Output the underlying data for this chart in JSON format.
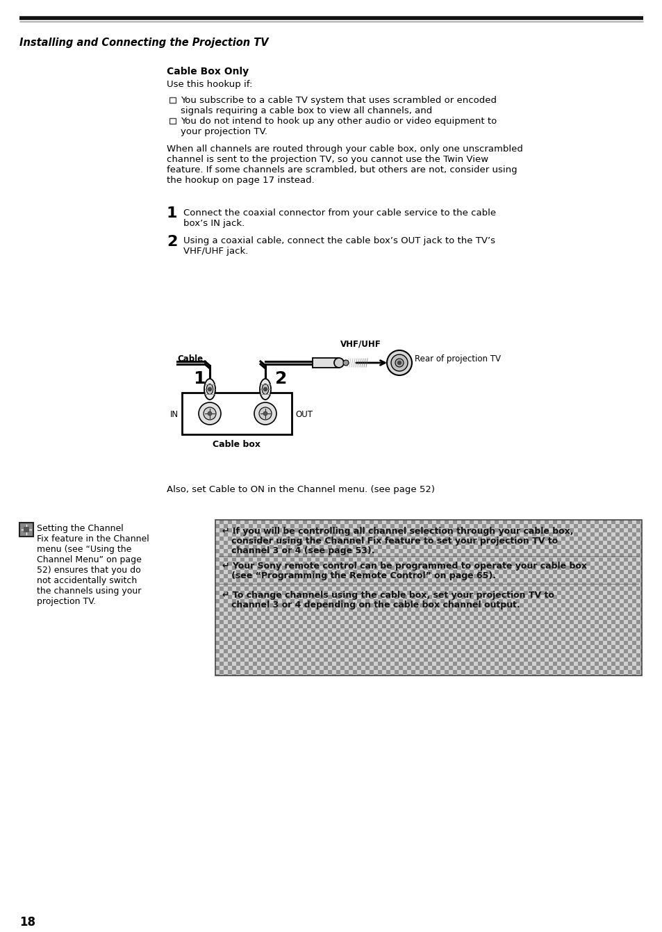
{
  "page_title": "Installing and Connecting the Projection TV",
  "section_title": "Cable Box Only",
  "subtitle": "Use this hookup if:",
  "bullet1": "You subscribe to a cable TV system that uses scrambled or encoded\nsignals requiring a cable box to view all channels, and",
  "bullet2": "You do not intend to hook up any other audio or video equipment to\nyour projection TV.",
  "body_text": "When all channels are routed through your cable box, only one unscrambled\nchannel is sent to the projection TV, so you cannot use the Twin View\nfeature. If some channels are scrambled, but others are not, consider using\nthe hookup on page 17 instead.",
  "step1": "Connect the coaxial connector from your cable service to the cable\nbox’s IN jack.",
  "step2": "Using a coaxial cable, connect the cable box’s OUT jack to the TV’s\nVHF/UHF jack.",
  "cable_label": "Cable",
  "vhf_label": "VHF/UHF",
  "tv_label": "Rear of projection TV",
  "in_label": "IN",
  "out_label": "OUT",
  "cablebox_label": "Cable box",
  "also_text": "Also, set Cable to ON in the Channel menu. (see page 52)",
  "left_note": "Setting the Channel\nFix feature in the Channel\nmenu (see “Using the\nChannel Menu” on page\n52) ensures that you do\nnot accidentally switch\nthe channels using your\nprojection TV.",
  "tip1_l1": "↵ If you will be controlling all channel selection through your cable box,",
  "tip1_l2": "   consider using the Channel Fix feature to set your projection TV to",
  "tip1_l3": "   channel 3 or 4 (see page 53).",
  "tip2_l1": "↵ Your Sony remote control can be programmed to operate your cable box",
  "tip2_l2": "   (see “Programming the Remote Control” on page 65).",
  "tip3_l1": "↵ To change channels using the cable box, set your projection TV to",
  "tip3_l2": "   channel 3 or 4 depending on the cable box channel output.",
  "page_number": "18",
  "bg_color": "#ffffff",
  "text_color": "#000000",
  "tip_dark": "#909090",
  "tip_light": "#d0d0d0"
}
